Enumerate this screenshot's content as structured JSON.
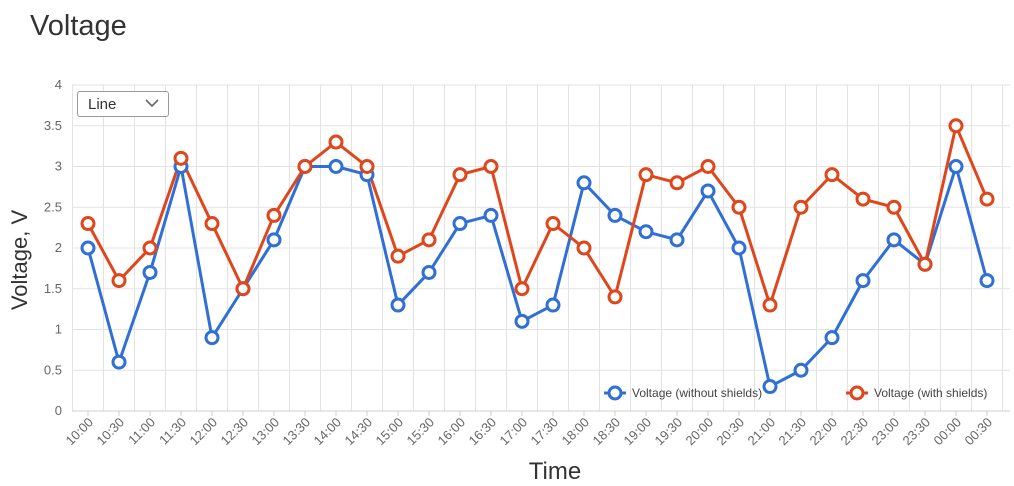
{
  "chart_data": {
    "type": "line",
    "title": "Voltage",
    "xlabel": "Time",
    "ylabel": "Voltage, V",
    "ylim": [
      0,
      4
    ],
    "yticks": [
      "0",
      "0.5",
      "1",
      "1.5",
      "2",
      "2.5",
      "3",
      "3.5",
      "4"
    ],
    "categories": [
      "10:00",
      "10:30",
      "11:00",
      "11:30",
      "12:00",
      "12:30",
      "13:00",
      "13:30",
      "14:00",
      "14:30",
      "15:00",
      "15:30",
      "16:00",
      "16:30",
      "17:00",
      "17:30",
      "18:00",
      "18:30",
      "19:00",
      "19:30",
      "20:00",
      "20:30",
      "21:00",
      "21:30",
      "22:00",
      "22:30",
      "23:00",
      "23:30",
      "00:00",
      "00:30"
    ],
    "grid": true,
    "legend_position": "bottom-right",
    "series": [
      {
        "name": "Voltage (without shields)",
        "color": "#2f6fd6",
        "values": [
          2.0,
          0.6,
          1.7,
          3.0,
          0.9,
          1.5,
          2.1,
          3.0,
          3.0,
          2.9,
          1.3,
          1.7,
          2.3,
          2.4,
          1.1,
          1.3,
          2.8,
          2.4,
          2.2,
          2.1,
          2.7,
          2.0,
          0.3,
          0.5,
          0.9,
          1.6,
          2.1,
          1.8,
          3.0,
          1.6
        ]
      },
      {
        "name": "Voltage (with shields)",
        "color": "#e0461c",
        "values": [
          2.3,
          1.6,
          2.0,
          3.1,
          2.3,
          1.5,
          2.4,
          3.0,
          3.3,
          3.0,
          1.9,
          2.1,
          2.9,
          3.0,
          1.5,
          2.3,
          2.0,
          1.4,
          2.9,
          2.8,
          3.0,
          2.5,
          1.3,
          2.5,
          2.9,
          2.6,
          2.5,
          1.8,
          3.5,
          2.6
        ]
      }
    ]
  },
  "controls": {
    "chart_type_selected": "Line",
    "chevron_icon": "chevron-down-icon"
  }
}
